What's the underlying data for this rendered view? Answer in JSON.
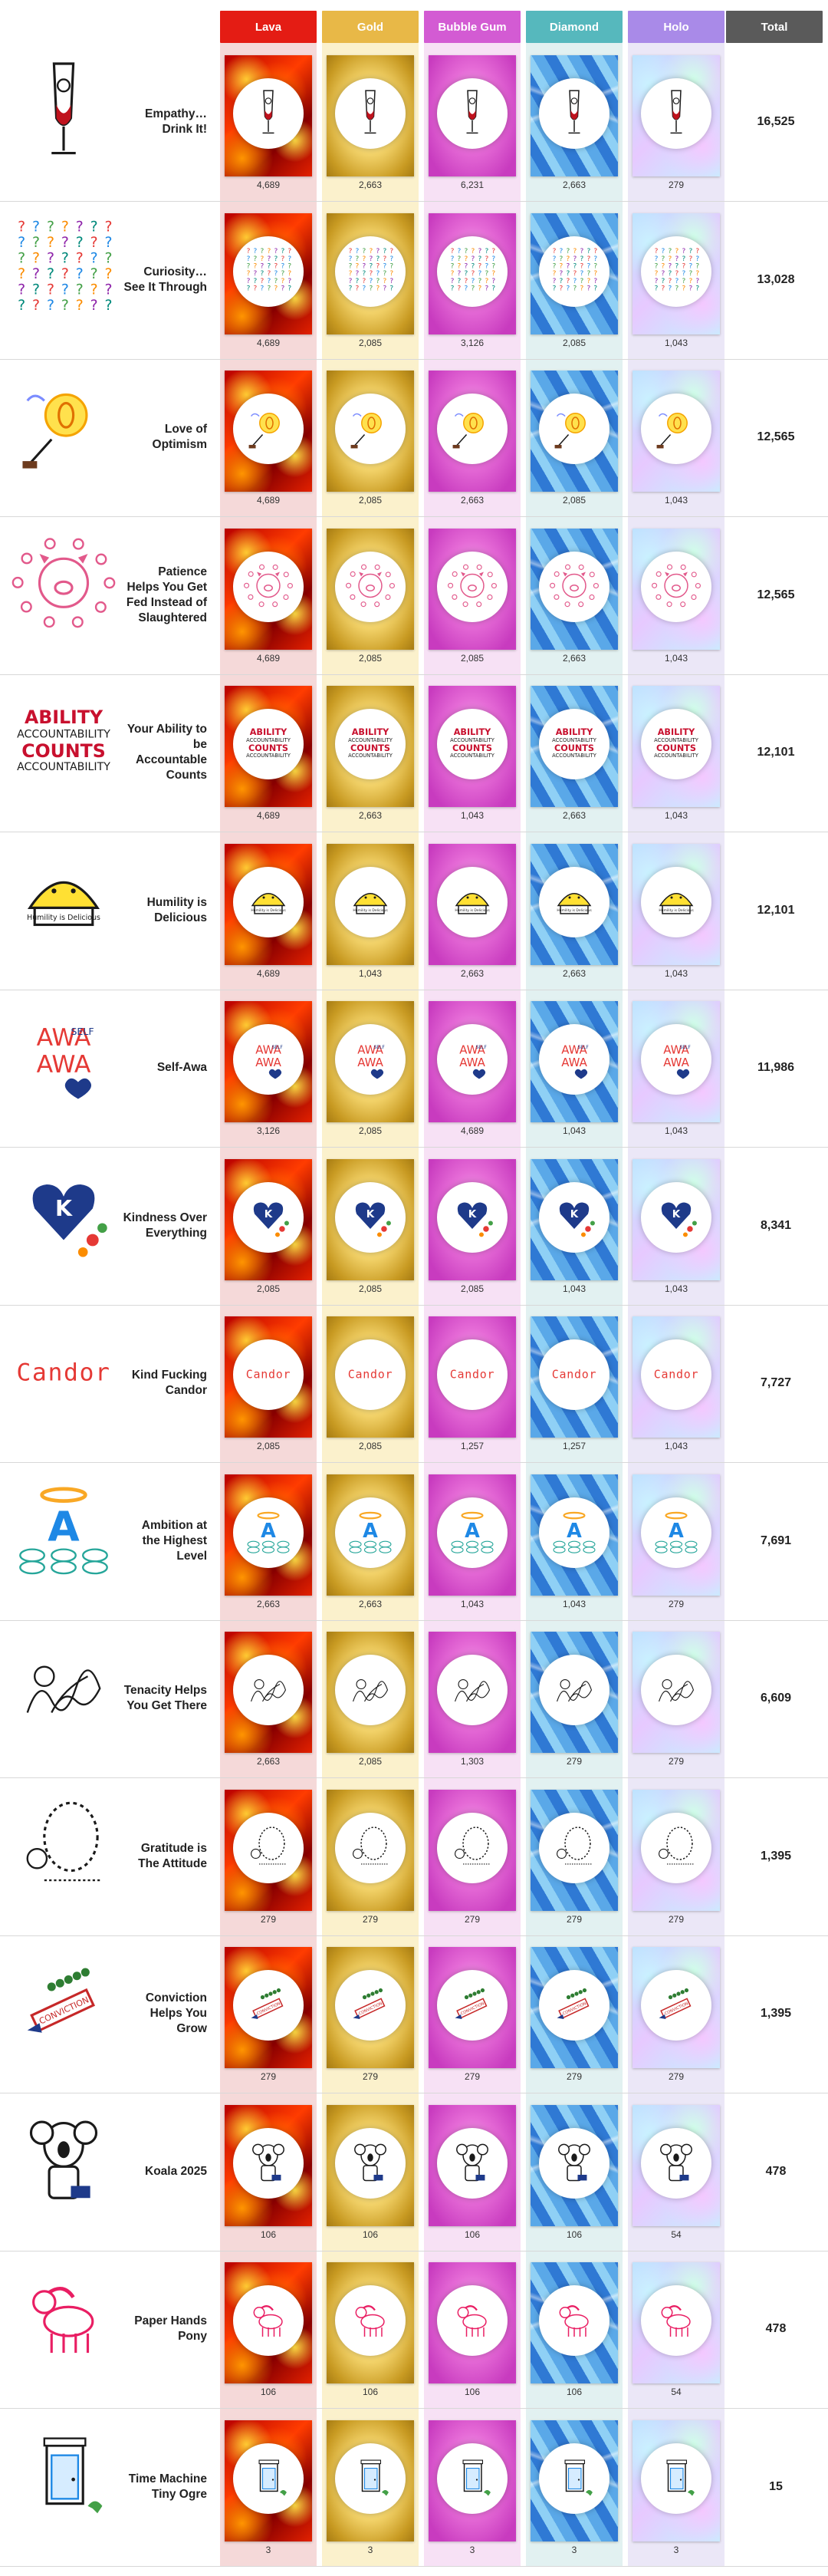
{
  "header": {
    "columns": [
      {
        "label": "Lava",
        "color": "#e41c14"
      },
      {
        "label": "Gold",
        "color": "#e8b847"
      },
      {
        "label": "Bubble Gum",
        "color": "#d35bd3"
      },
      {
        "label": "Diamond",
        "color": "#56b8bd"
      },
      {
        "label": "Holo",
        "color": "#a98ae8"
      }
    ],
    "total_label": "Total",
    "total_color": "#5a5a5a"
  },
  "column_tints": [
    "#f5d9d9",
    "#fbf1cc",
    "#f7e1f5",
    "#e2f1f1",
    "#ebe7f7"
  ],
  "rows": [
    {
      "title": "Empathy… Drink It!",
      "icon": "wine-glass-drawing",
      "counts": [
        "4,689",
        "2,663",
        "6,231",
        "2,663",
        "279"
      ],
      "total": "16,525"
    },
    {
      "title": "Curiosity… See It Through",
      "icon": "question-marks-drawing",
      "counts": [
        "4,689",
        "2,085",
        "3,126",
        "2,085",
        "1,043"
      ],
      "total": "13,028"
    },
    {
      "title": "Love of Optimism",
      "icon": "optimism-sun-drawing",
      "counts": [
        "4,689",
        "2,085",
        "2,663",
        "2,085",
        "1,043"
      ],
      "total": "12,565"
    },
    {
      "title": "Patience Helps You Get Fed Instead of Slaughtered",
      "icon": "pig-drawing",
      "counts": [
        "4,689",
        "2,085",
        "2,085",
        "2,663",
        "1,043"
      ],
      "total": "12,565"
    },
    {
      "title": "Your Ability to be Accountable Counts",
      "icon": "ability-counts-drawing",
      "counts": [
        "4,689",
        "2,663",
        "1,043",
        "2,663",
        "1,043"
      ],
      "total": "12,101"
    },
    {
      "title": "Humility is Delicious",
      "icon": "humility-pie-drawing",
      "counts": [
        "4,689",
        "1,043",
        "2,663",
        "2,663",
        "1,043"
      ],
      "total": "12,101"
    },
    {
      "title": "Self-Awa",
      "icon": "self-awa-drawing",
      "counts": [
        "3,126",
        "2,085",
        "4,689",
        "1,043",
        "1,043"
      ],
      "total": "11,986"
    },
    {
      "title": "Kindness Over Everything",
      "icon": "kindness-hearts-drawing",
      "counts": [
        "2,085",
        "2,085",
        "2,085",
        "1,043",
        "1,043"
      ],
      "total": "8,341"
    },
    {
      "title": "Kind Fucking Candor",
      "icon": "candor-drawing",
      "counts": [
        "2,085",
        "2,085",
        "1,257",
        "1,257",
        "1,043"
      ],
      "total": "7,727"
    },
    {
      "title": "Ambition at the Highest Level",
      "icon": "ambition-halo-drawing",
      "counts": [
        "2,663",
        "2,663",
        "1,043",
        "1,043",
        "279"
      ],
      "total": "7,691"
    },
    {
      "title": "Tenacity Helps You Get There",
      "icon": "tenacity-scribble-drawing",
      "counts": [
        "2,663",
        "2,085",
        "1,303",
        "279",
        "279"
      ],
      "total": "6,609"
    },
    {
      "title": "Gratitude is The Attitude",
      "icon": "gratitude-face-drawing",
      "counts": [
        "279",
        "279",
        "279",
        "279",
        "279"
      ],
      "total": "1,395"
    },
    {
      "title": "Conviction Helps You Grow",
      "icon": "conviction-drawing",
      "counts": [
        "279",
        "279",
        "279",
        "279",
        "279"
      ],
      "total": "1,395"
    },
    {
      "title": "Koala 2025",
      "icon": "koala-drawing",
      "counts": [
        "106",
        "106",
        "106",
        "106",
        "54"
      ],
      "total": "478"
    },
    {
      "title": "Paper Hands Pony",
      "icon": "pony-drawing",
      "counts": [
        "106",
        "106",
        "106",
        "106",
        "54"
      ],
      "total": "478"
    },
    {
      "title": "Time Machine Tiny Ogre",
      "icon": "time-machine-drawing",
      "counts": [
        "3",
        "3",
        "3",
        "3",
        "3"
      ],
      "total": "15"
    }
  ]
}
